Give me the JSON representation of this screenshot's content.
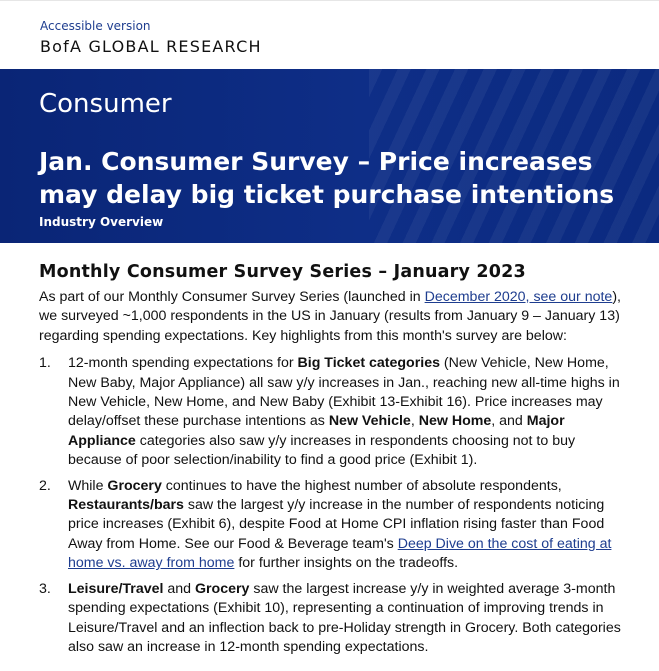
{
  "header": {
    "access_link": "Accessible version",
    "brand_bofa": "BofA",
    "brand_rest": "GLOBAL RESEARCH"
  },
  "banner": {
    "section": "Consumer",
    "title": "Jan. Consumer Survey – Price increases may delay big ticket purchase intentions",
    "subtitle": "Industry Overview"
  },
  "body": {
    "heading": "Monthly Consumer Survey Series – January 2023",
    "intro": {
      "t1": "As part of our Monthly Consumer Survey Series (launched in ",
      "link": "December 2020, see our note",
      "t2": "), we surveyed ~1,000 respondents in the US in January (results from January 9 – January 13) regarding spending expectations. Key highlights from this month's survey are below:"
    },
    "items": [
      {
        "num": "1.",
        "a": "12-month spending expectations for ",
        "b1": "Big Ticket categories",
        "c": " (New Vehicle, New Home, New Baby, Major Appliance) all saw y/y increases in Jan., reaching new all-time highs in New Vehicle, New Home, and New Baby (Exhibit 13-Exhibit 16). Price increases may delay/offset these purchase intentions as ",
        "b2": "New Vehicle",
        "d": ", ",
        "b3": "New Home",
        "e": ", and ",
        "b4": "Major Appliance",
        "f": " categories also saw y/y increases in respondents choosing not to buy because of poor selection/inability to find a good price (Exhibit 1)."
      },
      {
        "num": "2.",
        "a": "While ",
        "b1": "Grocery",
        "c": " continues to have the highest number of absolute respondents, ",
        "b2": "Restaurants/bars",
        "d": " saw the largest y/y increase in the number of respondents noticing price increases (Exhibit 6), despite Food at Home CPI inflation rising faster than Food Away from Home. See our Food & Beverage team's ",
        "link": "Deep Dive on the cost of eating at home vs. away from home",
        "e": " for further insights on the tradeoffs."
      },
      {
        "num": "3.",
        "b1": "Leisure/Travel",
        "a": " and ",
        "b2": "Grocery",
        "c": " saw the largest increase y/y in weighted average 3-month spending expectations (Exhibit 10), representing a continuation of improving trends in Leisure/Travel and an inflection back to pre-Holiday strength in Grocery. Both categories also saw an increase in 12-month spending expectations."
      }
    ]
  },
  "colors": {
    "banner": "#0e2e87",
    "link": "#1e3d8f"
  }
}
